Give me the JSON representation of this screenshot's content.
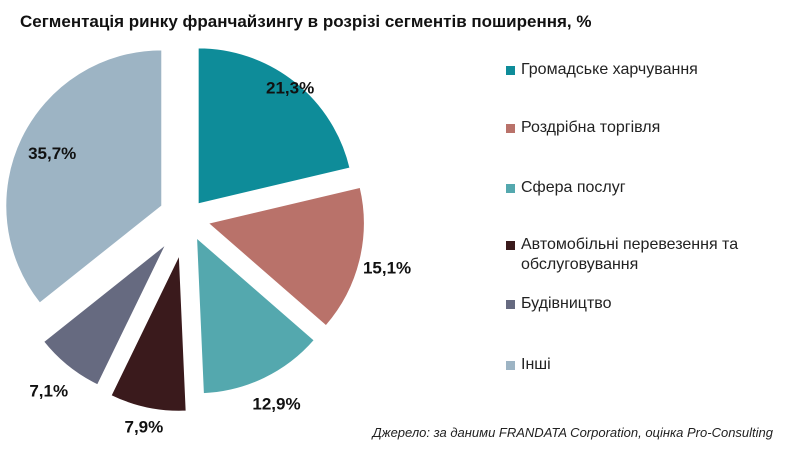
{
  "chart_data": {
    "type": "pie",
    "title": "Сегментація ринку франчайзингу в розрізі сегментів поширення, %",
    "categories": [
      "Громадське харчування",
      "Роздрібна торгівля",
      "Сфера послуг",
      "Автомобільні перевезення та обслуговування",
      "Будівництво",
      "Інші"
    ],
    "values": [
      21.3,
      15.1,
      12.9,
      7.9,
      7.1,
      35.7
    ],
    "data_labels": [
      "21,3%",
      "15,1%",
      "12,9%",
      "7,9%",
      "7,1%",
      "35,7%"
    ],
    "colors": [
      "#0E8C99",
      "#B9726A",
      "#54A8AE",
      "#3A1A1C",
      "#666A80",
      "#9DB4C4"
    ],
    "legend_position": "right",
    "exploded": true
  },
  "source": "Джерело: за даними FRANDATA Corporation, оцінка Pro-Consulting"
}
